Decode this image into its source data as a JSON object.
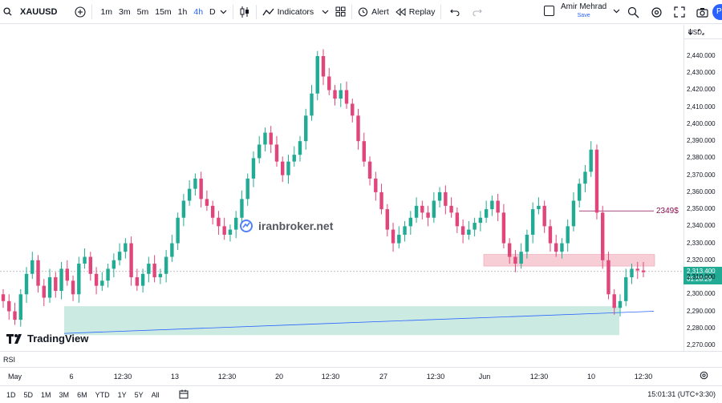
{
  "toolbar": {
    "symbol": "XAUUSD",
    "intervals": [
      "1m",
      "3m",
      "5m",
      "15m",
      "1h",
      "4h",
      "D"
    ],
    "active_interval": "4h",
    "indicators_label": "Indicators",
    "alert_label": "Alert",
    "replay_label": "Replay",
    "publish_label": "Pu"
  },
  "user": {
    "name": "Amir Mehrad",
    "status": "Save"
  },
  "price_axis": {
    "currency": "USD",
    "ticks": [
      "2,440.000",
      "2,430.000",
      "2,420.000",
      "2,410.000",
      "2,400.000",
      "2,390.000",
      "2,380.000",
      "2,370.000",
      "2,360.000",
      "2,350.000",
      "2,340.000",
      "2,330.000",
      "2,320.000",
      "2,310.000",
      "2,300.000",
      "2,290.000",
      "2,280.000",
      "2,270.000"
    ],
    "last_price": "2,313.400",
    "countdown": "01:28:29"
  },
  "annotation": "2349$",
  "watermark": "iranbroker.net",
  "logo": "TradingView",
  "rsi_label": "RSI",
  "time_axis": [
    "May",
    "6",
    "12:30",
    "13",
    "12:30",
    "20",
    "12:30",
    "27",
    "12:30",
    "Jun",
    "12:30",
    "10",
    "12:30"
  ],
  "ranges": [
    "1D",
    "5D",
    "1M",
    "3M",
    "6M",
    "YTD",
    "1Y",
    "5Y",
    "All"
  ],
  "clock": "15:01:31 (UTC+3:30)",
  "colors": {
    "up": "#22ab94",
    "down": "#e0457b",
    "zone_red": "#f7c5cf",
    "zone_green": "#a9dccf",
    "trend": "#2962ff"
  },
  "chart_data": {
    "type": "candlestick",
    "ylim": [
      2270,
      2450
    ],
    "close_series": [
      2296,
      2290,
      2285,
      2300,
      2312,
      2320,
      2305,
      2298,
      2310,
      2302,
      2315,
      2308,
      2300,
      2318,
      2322,
      2312,
      2305,
      2308,
      2315,
      2320,
      2325,
      2330,
      2310,
      2305,
      2312,
      2318,
      2310,
      2312,
      2322,
      2330,
      2345,
      2355,
      2362,
      2368,
      2356,
      2352,
      2345,
      2340,
      2335,
      2338,
      2345,
      2356,
      2368,
      2380,
      2388,
      2395,
      2388,
      2378,
      2370,
      2378,
      2382,
      2390,
      2405,
      2418,
      2440,
      2428,
      2420,
      2415,
      2420,
      2412,
      2405,
      2390,
      2378,
      2368,
      2360,
      2350,
      2338,
      2330,
      2335,
      2340,
      2345,
      2352,
      2348,
      2345,
      2355,
      2360,
      2352,
      2348,
      2340,
      2335,
      2338,
      2342,
      2345,
      2350,
      2355,
      2348,
      2330,
      2322,
      2318,
      2325,
      2335,
      2350,
      2352,
      2340,
      2330,
      2325,
      2330,
      2340,
      2355,
      2365,
      2372,
      2385,
      2348,
      2320,
      2300,
      2292,
      2296,
      2310,
      2315,
      2314,
      2313
    ],
    "annotation_level": 2349,
    "supply_zone": [
      2318,
      2322
    ],
    "demand_zone": [
      2276,
      2293
    ]
  }
}
